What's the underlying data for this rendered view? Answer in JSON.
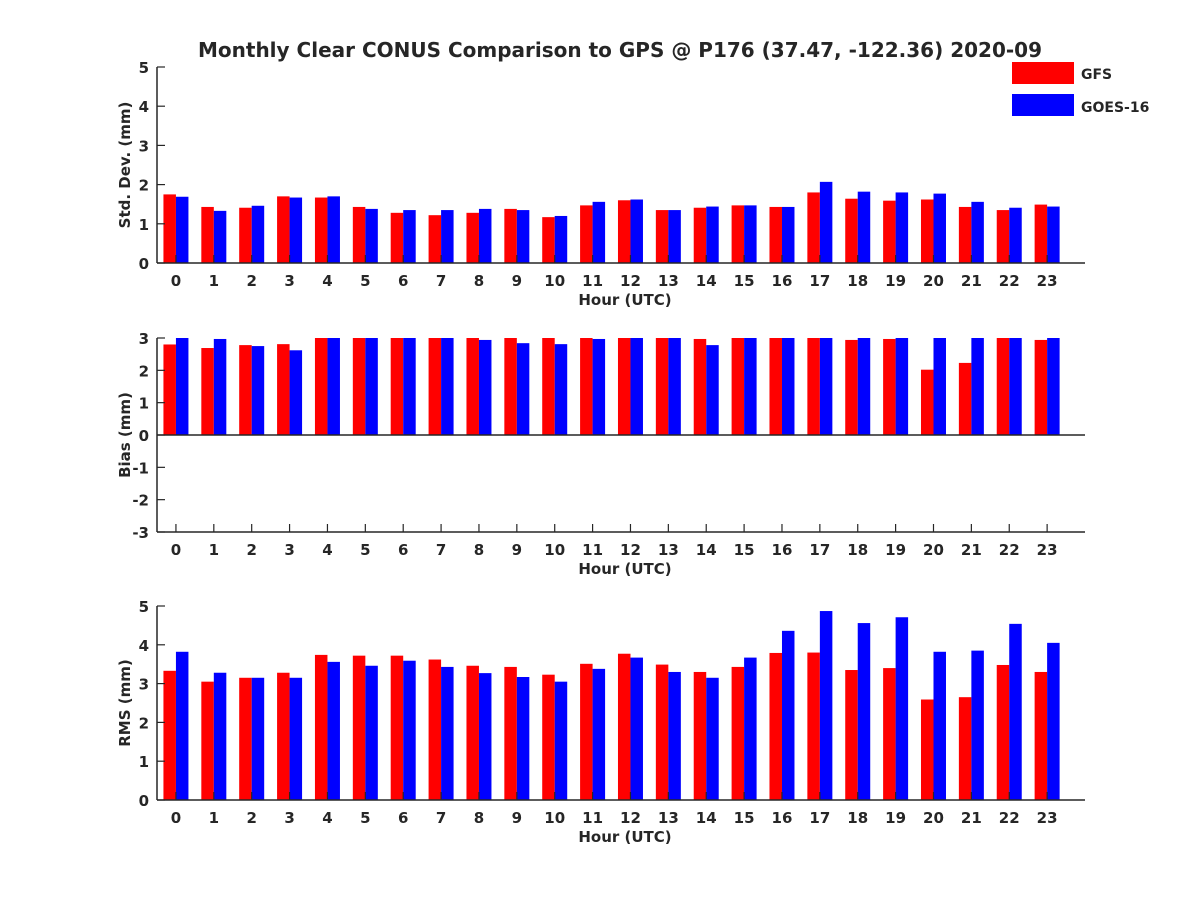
{
  "title": "Monthly Clear CONUS Comparison to GPS @ P176 (37.47, -122.36) 2020-09",
  "legend": [
    {
      "label": "GFS",
      "color": "#ff0000"
    },
    {
      "label": "GOES-16",
      "color": "#0000ff"
    }
  ],
  "chart_data": [
    {
      "type": "bar",
      "categories": [
        "0",
        "1",
        "2",
        "3",
        "4",
        "5",
        "6",
        "7",
        "8",
        "9",
        "10",
        "11",
        "12",
        "13",
        "14",
        "15",
        "16",
        "17",
        "18",
        "19",
        "20",
        "21",
        "22",
        "23"
      ],
      "xlabel": "Hour (UTC)",
      "ylabel": "Std. Dev. (mm)",
      "ylim": [
        0,
        5
      ],
      "yticks": [
        0,
        1,
        2,
        3,
        4,
        5
      ],
      "series": [
        {
          "name": "GFS",
          "color": "#ff0000",
          "values": [
            1.75,
            1.43,
            1.41,
            1.7,
            1.67,
            1.43,
            1.28,
            1.22,
            1.28,
            1.38,
            1.17,
            1.47,
            1.6,
            1.35,
            1.41,
            1.47,
            1.43,
            1.8,
            1.64,
            1.59,
            1.62,
            1.43,
            1.35,
            1.49
          ]
        },
        {
          "name": "GOES-16",
          "color": "#0000ff",
          "values": [
            1.69,
            1.33,
            1.46,
            1.67,
            1.7,
            1.38,
            1.35,
            1.35,
            1.38,
            1.35,
            1.2,
            1.56,
            1.62,
            1.35,
            1.44,
            1.47,
            1.43,
            2.07,
            1.82,
            1.8,
            1.77,
            1.56,
            1.41,
            1.44
          ]
        }
      ]
    },
    {
      "type": "bar",
      "categories": [
        "0",
        "1",
        "2",
        "3",
        "4",
        "5",
        "6",
        "7",
        "8",
        "9",
        "10",
        "11",
        "12",
        "13",
        "14",
        "15",
        "16",
        "17",
        "18",
        "19",
        "20",
        "21",
        "22",
        "23"
      ],
      "xlabel": "Hour (UTC)",
      "ylabel": "Bias (mm)",
      "ylim": [
        -3,
        3
      ],
      "yticks": [
        -3,
        -2,
        -1,
        0,
        1,
        2,
        3
      ],
      "series": [
        {
          "name": "GFS",
          "color": "#ff0000",
          "values": [
            2.8,
            2.69,
            2.78,
            2.81,
            3.0,
            3.0,
            3.0,
            3.0,
            3.0,
            3.0,
            3.0,
            3.0,
            3.0,
            3.0,
            2.97,
            3.0,
            3.0,
            3.0,
            2.94,
            2.97,
            2.02,
            2.23,
            3.0,
            2.94
          ]
        },
        {
          "name": "GOES-16",
          "color": "#0000ff",
          "values": [
            3.0,
            2.97,
            2.75,
            2.62,
            3.0,
            3.0,
            3.0,
            3.0,
            2.94,
            2.84,
            2.81,
            2.97,
            3.0,
            3.0,
            2.78,
            3.0,
            3.0,
            3.0,
            3.0,
            3.0,
            3.0,
            3.0,
            3.0,
            3.0
          ]
        }
      ]
    },
    {
      "type": "bar",
      "categories": [
        "0",
        "1",
        "2",
        "3",
        "4",
        "5",
        "6",
        "7",
        "8",
        "9",
        "10",
        "11",
        "12",
        "13",
        "14",
        "15",
        "16",
        "17",
        "18",
        "19",
        "20",
        "21",
        "22",
        "23"
      ],
      "xlabel": "Hour (UTC)",
      "ylabel": "RMS (mm)",
      "ylim": [
        0,
        5
      ],
      "yticks": [
        0,
        1,
        2,
        3,
        4,
        5
      ],
      "series": [
        {
          "name": "GFS",
          "color": "#ff0000",
          "values": [
            3.33,
            3.05,
            3.15,
            3.28,
            3.74,
            3.72,
            3.72,
            3.62,
            3.46,
            3.43,
            3.23,
            3.51,
            3.77,
            3.49,
            3.3,
            3.43,
            3.79,
            3.8,
            3.35,
            3.4,
            2.59,
            2.65,
            3.48,
            3.3
          ]
        },
        {
          "name": "GOES-16",
          "color": "#0000ff",
          "values": [
            3.82,
            3.28,
            3.15,
            3.15,
            3.56,
            3.46,
            3.59,
            3.43,
            3.27,
            3.17,
            3.05,
            3.38,
            3.67,
            3.3,
            3.15,
            3.67,
            4.36,
            4.87,
            4.56,
            4.71,
            3.82,
            3.85,
            4.54,
            4.05
          ]
        }
      ]
    }
  ]
}
